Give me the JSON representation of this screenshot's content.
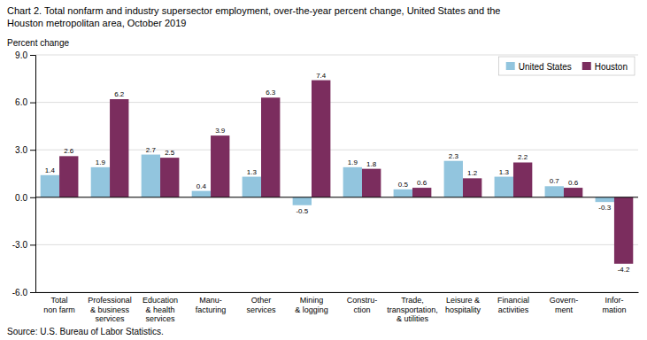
{
  "chart_data": {
    "type": "bar",
    "title": "Chart 2. Total nonfarm and industry supersector employment, over-the-year percent change, United States and the\nHouston metropolitan area, October 2019",
    "y_label": "Percent change",
    "annotations": [
      "Source: U.S. Bureau of Labor Statistics."
    ],
    "categories": [
      "Total\nnon farm",
      "Professional\n& business\nservices",
      "Education\n& health\nservices",
      "Manu-\nfacturing",
      "Other\nservices",
      "Mining\n& logging",
      "Constru-\nction",
      "Trade,\ntransportation,\n& utilities",
      "Leisure &\nhospitality",
      "Financial\nactivities",
      "Govern-\nment",
      "Infor-\nmation"
    ],
    "series": [
      {
        "name": "United States",
        "color": "#92C5DE",
        "values": [
          1.4,
          1.9,
          2.7,
          0.4,
          1.3,
          -0.5,
          1.9,
          0.5,
          2.3,
          1.3,
          0.7,
          -0.3
        ]
      },
      {
        "name": "Houston",
        "color": "#7B2D5E",
        "values": [
          2.6,
          6.2,
          2.5,
          3.9,
          6.3,
          7.4,
          1.8,
          0.6,
          1.2,
          2.2,
          0.6,
          -4.2
        ]
      }
    ],
    "ylim": [
      -6.0,
      9.0
    ],
    "yticks": [
      {
        "value": -6.0,
        "label": "-6.0"
      },
      {
        "value": -3.0,
        "label": "-3.0"
      },
      {
        "value": 0.0,
        "label": "0.0"
      },
      {
        "value": 3.0,
        "label": "3.0"
      },
      {
        "value": 6.0,
        "label": "6.0"
      },
      {
        "value": 9.0,
        "label": "9.0"
      }
    ],
    "grid": true,
    "legend": "upper right",
    "data_labels": true
  }
}
